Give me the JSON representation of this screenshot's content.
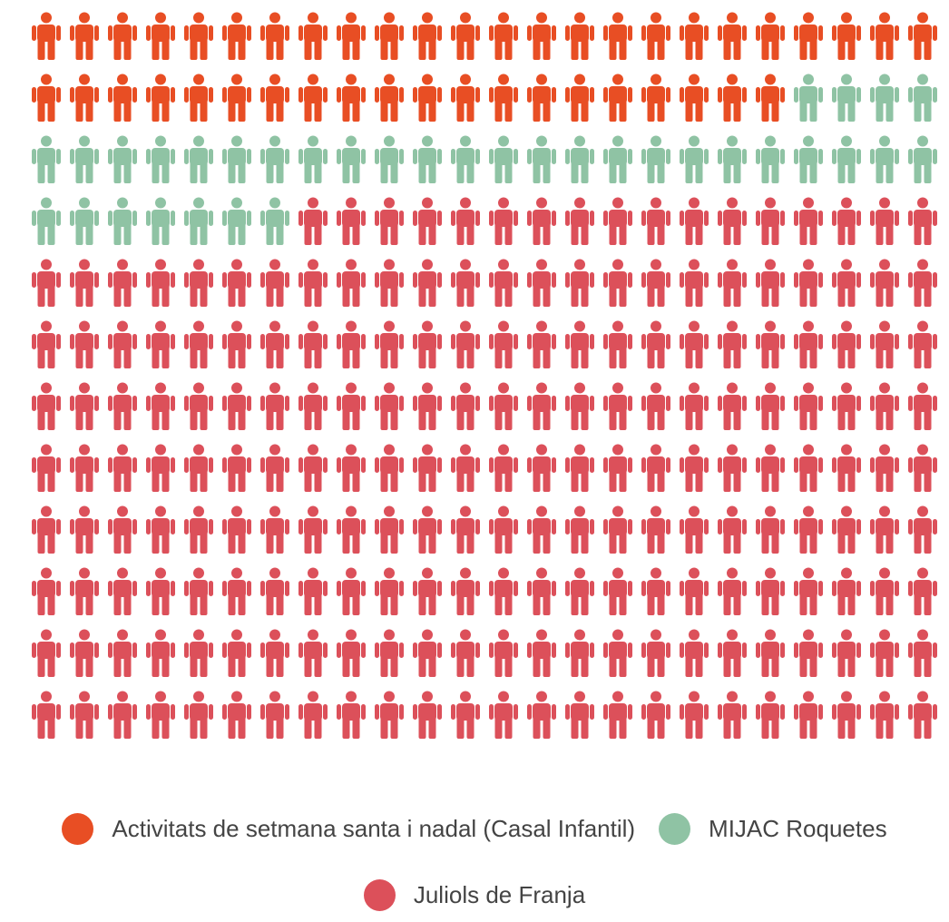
{
  "chart_data": {
    "type": "pictogram",
    "grid": {
      "columns": 24,
      "rows": 12
    },
    "series": [
      {
        "name": "Activitats de setmana santa i nadal (Casal Infantil)",
        "value": 44,
        "color": "#e84e24"
      },
      {
        "name": "MIJAC Roquetes",
        "value": 35,
        "color": "#8fc3a4"
      },
      {
        "name": "Juliols de Franja",
        "value": 209,
        "color": "#dc505a"
      }
    ],
    "icon": "person-icon",
    "legend_position": "bottom"
  }
}
